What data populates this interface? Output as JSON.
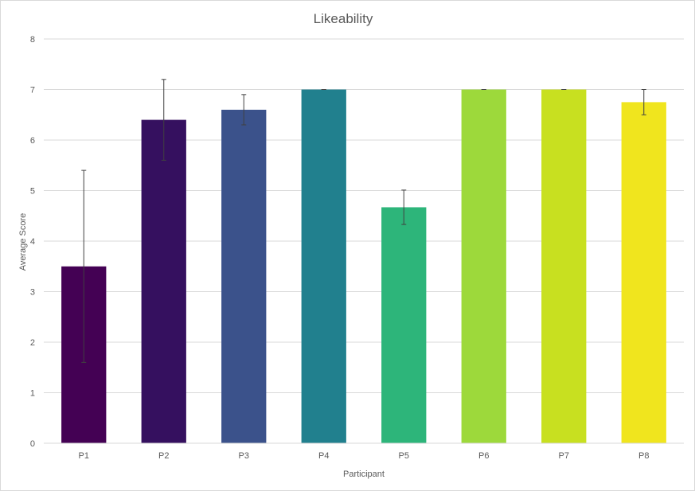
{
  "chart_data": {
    "type": "bar",
    "title": "Likeability",
    "xlabel": "Participant",
    "ylabel": "Average Score",
    "categories": [
      "P1",
      "P2",
      "P3",
      "P4",
      "P5",
      "P6",
      "P7",
      "P8"
    ],
    "values": [
      3.5,
      6.4,
      6.6,
      7.0,
      4.67,
      7.0,
      7.0,
      6.75
    ],
    "error": [
      1.9,
      0.8,
      0.3,
      0.0,
      0.34,
      0.0,
      0.0,
      0.25
    ],
    "colors": [
      "#440154",
      "#35105f",
      "#3b528b",
      "#21808e",
      "#2db57a",
      "#9dd93b",
      "#c8e020",
      "#f0e51e"
    ],
    "ylim": [
      0,
      8
    ],
    "yticks": [
      "0",
      "1",
      "2",
      "3",
      "4",
      "5",
      "6",
      "7",
      "8"
    ],
    "grid": true,
    "legend": "none"
  }
}
